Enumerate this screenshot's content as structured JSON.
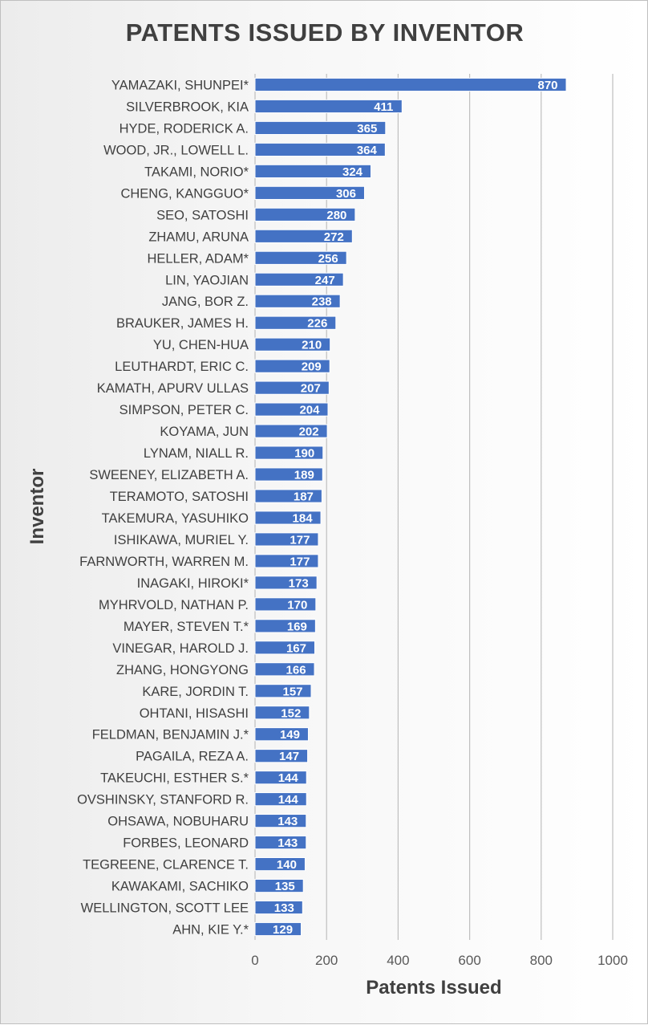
{
  "chart_data": {
    "type": "bar",
    "orientation": "horizontal",
    "title": "PATENTS ISSUED BY INVENTOR",
    "xlabel": "Patents Issued",
    "ylabel": "Inventor",
    "xlim": [
      0,
      1000
    ],
    "xticks": [
      "0",
      "200",
      "400",
      "600",
      "800",
      "1000"
    ],
    "grid": "vertical",
    "bar_color": "#4472c4",
    "categories": [
      "YAMAZAKI, SHUNPEI*",
      "SILVERBROOK, KIA",
      "HYDE, RODERICK A.",
      "WOOD, JR., LOWELL L.",
      "TAKAMI, NORIO*",
      "CHENG, KANGGUO*",
      "SEO, SATOSHI",
      "ZHAMU, ARUNA",
      "HELLER, ADAM*",
      "LIN, YAOJIAN",
      "JANG, BOR Z.",
      "BRAUKER, JAMES H.",
      "YU, CHEN-HUA",
      "LEUTHARDT, ERIC C.",
      "KAMATH, APURV ULLAS",
      "SIMPSON, PETER C.",
      "KOYAMA, JUN",
      "LYNAM, NIALL R.",
      "SWEENEY, ELIZABETH A.",
      "TERAMOTO, SATOSHI",
      "TAKEMURA, YASUHIKO",
      "ISHIKAWA, MURIEL Y.",
      "FARNWORTH, WARREN M.",
      "INAGAKI, HIROKI*",
      "MYHRVOLD, NATHAN P.",
      "MAYER, STEVEN T.*",
      "VINEGAR, HAROLD J.",
      "ZHANG, HONGYONG",
      "KARE, JORDIN T.",
      "OHTANI, HISASHI",
      "FELDMAN, BENJAMIN J.*",
      "PAGAILA, REZA A.",
      "TAKEUCHI, ESTHER S.*",
      "OVSHINSKY, STANFORD R.",
      "OHSAWA, NOBUHARU",
      "FORBES, LEONARD",
      "TEGREENE, CLARENCE T.",
      "KAWAKAMI, SACHIKO",
      "WELLINGTON, SCOTT LEE",
      "AHN, KIE Y.*"
    ],
    "values": [
      870,
      411,
      365,
      364,
      324,
      306,
      280,
      272,
      256,
      247,
      238,
      226,
      210,
      209,
      207,
      204,
      202,
      190,
      189,
      187,
      184,
      177,
      177,
      173,
      170,
      169,
      167,
      166,
      157,
      152,
      149,
      147,
      144,
      144,
      143,
      143,
      140,
      135,
      133,
      129
    ]
  }
}
